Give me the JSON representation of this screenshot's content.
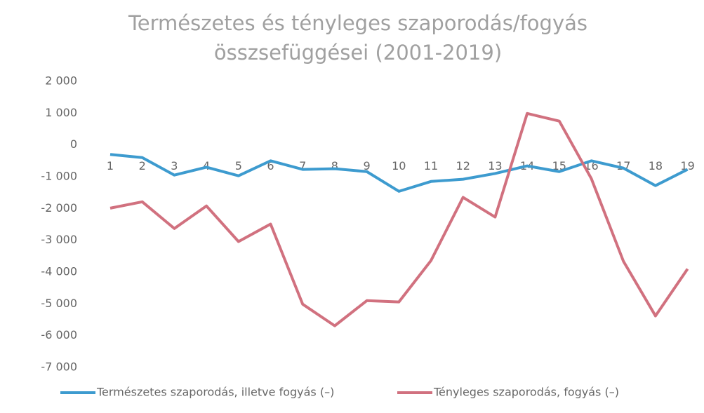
{
  "chart_data": {
    "type": "line",
    "title": "Természetes és tényleges szaporodás/fogyás összsefüggései (2001-2019)",
    "categories": [
      "1",
      "2",
      "3",
      "4",
      "5",
      "6",
      "7",
      "8",
      "9",
      "10",
      "11",
      "12",
      "13",
      "14",
      "15",
      "16",
      "17",
      "18",
      "19"
    ],
    "series": [
      {
        "name": "Természetes szaporodás, illetve fogyás (–)",
        "color": "#3d9bcf",
        "values": [
          -300,
          -400,
          -950,
          -700,
          -970,
          -500,
          -770,
          -750,
          -840,
          -1460,
          -1150,
          -1080,
          -900,
          -660,
          -840,
          -500,
          -730,
          -1280,
          -770
        ]
      },
      {
        "name": "Tényleges szaporodás, fogyás (–)",
        "color": "#d1717f",
        "values": [
          -1990,
          -1790,
          -2630,
          -1920,
          -3040,
          -2490,
          -5010,
          -5690,
          -4900,
          -4940,
          -3640,
          -1650,
          -2270,
          990,
          750,
          -1060,
          -3660,
          -5380,
          -3900
        ]
      }
    ],
    "ylim": [
      -7000,
      2000
    ],
    "yticks": [
      {
        "value": 2000,
        "label": "2 000"
      },
      {
        "value": 1000,
        "label": "1 000"
      },
      0,
      {
        "value": -1000,
        "label": "-1 000"
      },
      {
        "value": -2000,
        "label": "-2 000"
      },
      {
        "value": -3000,
        "label": "-3 000"
      },
      {
        "value": -4000,
        "label": "-4 000"
      },
      {
        "value": -5000,
        "label": "-5 000"
      },
      {
        "value": -6000,
        "label": "-6 000"
      },
      {
        "value": -7000,
        "label": "-7 000"
      }
    ],
    "grid": false,
    "legend": "bottom"
  }
}
